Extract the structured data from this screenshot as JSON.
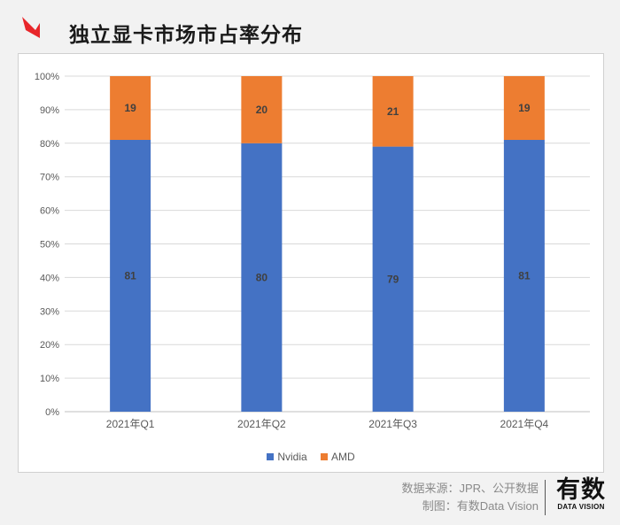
{
  "header": {
    "title": "独立显卡市场市占率分布",
    "accent_color": "#e8262a"
  },
  "chart_data": {
    "type": "bar",
    "stacked": true,
    "title": "独立显卡市场市占率分布",
    "categories": [
      "2021年Q1",
      "2021年Q2",
      "2021年Q3",
      "2021年Q4"
    ],
    "series": [
      {
        "name": "Nvidia",
        "values": [
          81,
          80,
          79,
          81
        ],
        "color": "#4472c4"
      },
      {
        "name": "AMD",
        "values": [
          19,
          20,
          21,
          19
        ],
        "color": "#ed7d31"
      }
    ],
    "yticks": [
      "0%",
      "10%",
      "20%",
      "30%",
      "40%",
      "50%",
      "60%",
      "70%",
      "80%",
      "90%",
      "100%"
    ],
    "ylim": [
      0,
      100
    ],
    "xlabel": "",
    "ylabel": "",
    "grid": true,
    "legend_position": "bottom"
  },
  "legend": {
    "items": [
      "Nvidia",
      "AMD"
    ]
  },
  "footer": {
    "source": "数据来源：JPR、公开数据",
    "credit": "制图：有数Data Vision",
    "brand_cn": "有数",
    "brand_en": "DATA VISION"
  }
}
